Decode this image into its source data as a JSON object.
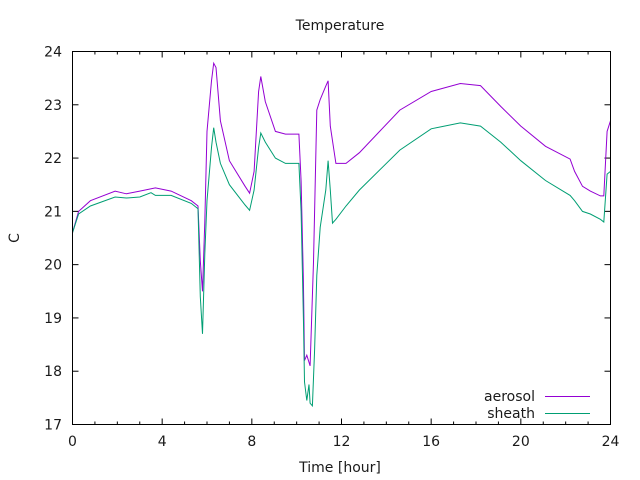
{
  "chart_data": {
    "type": "line",
    "title": "Temperature",
    "xlabel": "Time [hour]",
    "ylabel": "C",
    "xlim": [
      0,
      24
    ],
    "ylim": [
      17,
      24
    ],
    "xticks": [
      0,
      4,
      8,
      12,
      16,
      20,
      24
    ],
    "xtick_labels": [
      "0",
      "4",
      "8",
      "12",
      "16",
      "20",
      "24"
    ],
    "yticks": [
      17,
      18,
      19,
      20,
      21,
      22,
      23,
      24
    ],
    "ytick_labels": [
      "17",
      "18",
      "19",
      "20",
      "21",
      "22",
      "23",
      "24"
    ],
    "grid": false,
    "legend_position": "bottom-right",
    "series": [
      {
        "name": "aerosol",
        "color": "#9400d3",
        "x": [
          0,
          0.27,
          0.8,
          1.9,
          2.4,
          3.0,
          3.7,
          4.4,
          5.3,
          5.6,
          5.7,
          5.8,
          5.9,
          6.0,
          6.2,
          6.3,
          6.4,
          6.6,
          7.0,
          7.7,
          7.9,
          8.1,
          8.3,
          8.4,
          8.6,
          9.05,
          9.5,
          10.1,
          10.2,
          10.3,
          10.35,
          10.45,
          10.6,
          10.75,
          10.9,
          11.05,
          11.3,
          11.4,
          11.5,
          11.75,
          12.2,
          12.8,
          14.6,
          16.0,
          17.3,
          18.2,
          19.1,
          20.0,
          21.1,
          22.2,
          22.4,
          22.75,
          23.1,
          23.55,
          23.7,
          23.85,
          24
        ],
        "y": [
          20.6,
          21.0,
          21.2,
          21.38,
          21.33,
          21.38,
          21.44,
          21.38,
          21.2,
          21.1,
          20.07,
          19.5,
          20.8,
          22.5,
          23.45,
          23.78,
          23.7,
          22.7,
          21.95,
          21.47,
          21.34,
          21.75,
          23.25,
          23.53,
          23.06,
          22.5,
          22.45,
          22.45,
          21.57,
          19.7,
          18.2,
          18.3,
          18.1,
          20.05,
          22.9,
          23.1,
          23.35,
          23.45,
          22.6,
          21.9,
          21.9,
          22.1,
          22.9,
          23.25,
          23.4,
          23.36,
          22.97,
          22.6,
          22.22,
          21.98,
          21.75,
          21.47,
          21.38,
          21.29,
          21.29,
          22.5,
          22.7
        ]
      },
      {
        "name": "sheath",
        "color": "#009e73",
        "x": [
          0,
          0.27,
          0.8,
          1.9,
          2.4,
          3.0,
          3.5,
          3.7,
          4.4,
          5.3,
          5.6,
          5.7,
          5.8,
          5.9,
          6.0,
          6.2,
          6.3,
          6.4,
          6.6,
          7.0,
          7.7,
          7.9,
          8.1,
          8.3,
          8.4,
          8.6,
          9.05,
          9.5,
          10.1,
          10.2,
          10.3,
          10.35,
          10.45,
          10.55,
          10.6,
          10.7,
          10.8,
          10.9,
          11.05,
          11.3,
          11.4,
          11.5,
          11.6,
          11.75,
          12.2,
          12.8,
          14.6,
          16.0,
          17.3,
          18.2,
          19.1,
          20.0,
          21.1,
          22.2,
          22.4,
          22.75,
          23.1,
          23.55,
          23.7,
          23.85,
          24
        ],
        "y": [
          20.6,
          20.95,
          21.1,
          21.27,
          21.25,
          21.27,
          21.35,
          21.3,
          21.3,
          21.15,
          21.05,
          19.4,
          18.7,
          20.2,
          21.2,
          22.2,
          22.57,
          22.3,
          21.9,
          21.5,
          21.12,
          21.02,
          21.4,
          22.2,
          22.47,
          22.3,
          22.0,
          21.9,
          21.9,
          21.0,
          19.0,
          17.8,
          17.45,
          17.75,
          17.4,
          17.35,
          18.4,
          19.8,
          20.7,
          21.4,
          21.95,
          21.4,
          20.78,
          20.85,
          21.1,
          21.4,
          22.15,
          22.55,
          22.66,
          22.6,
          22.3,
          21.95,
          21.58,
          21.3,
          21.2,
          21.0,
          20.95,
          20.85,
          20.8,
          21.7,
          21.75
        ]
      }
    ]
  }
}
